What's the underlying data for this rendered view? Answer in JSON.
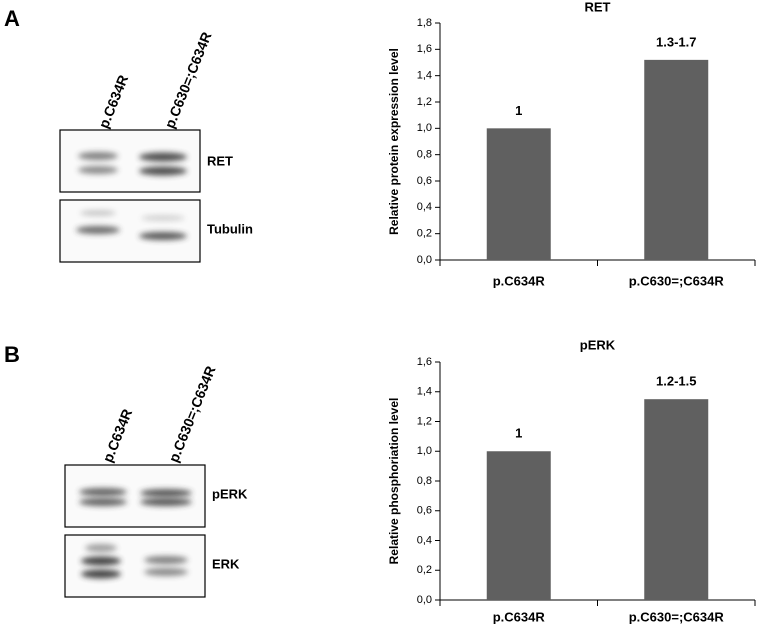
{
  "panels": [
    {
      "label": "A",
      "blot": {
        "lanes": [
          "p.C634R",
          "p.C630=;C634R"
        ],
        "rows": [
          "RET",
          "Tubulin"
        ]
      }
    },
    {
      "label": "B",
      "blot": {
        "lanes": [
          "p.C634R",
          "p.C630=;C634R"
        ],
        "rows": [
          "pERK",
          "ERK"
        ]
      }
    }
  ],
  "chart_data": [
    {
      "type": "bar",
      "title": "RET",
      "y_label": "Relative protein expression level",
      "categories": [
        "p.C634R",
        "p.C630=;C634R"
      ],
      "values": [
        1.0,
        1.52
      ],
      "value_labels": [
        "1",
        "1.3-1.7"
      ],
      "color": "#606060",
      "ylim": [
        0,
        1.8
      ],
      "yticks": [
        {
          "value": 0,
          "label": "0,0"
        },
        {
          "value": 0.2,
          "label": "0,2"
        },
        {
          "value": 0.4,
          "label": "0,4"
        },
        {
          "value": 0.6,
          "label": "0,6"
        },
        {
          "value": 0.8,
          "label": "0,8"
        },
        {
          "value": 1.0,
          "label": "1,0"
        },
        {
          "value": 1.2,
          "label": "1,2"
        },
        {
          "value": 1.4,
          "label": "1,4"
        },
        {
          "value": 1.6,
          "label": "1,6"
        },
        {
          "value": 1.8,
          "label": "1,8"
        }
      ]
    },
    {
      "type": "bar",
      "title": "pERK",
      "y_label": "Relative phosphoriation level",
      "categories": [
        "p.C634R",
        "p.C630=;C634R"
      ],
      "values": [
        1.0,
        1.35
      ],
      "value_labels": [
        "1",
        "1.2-1.5"
      ],
      "color": "#606060",
      "ylim": [
        0,
        1.6
      ],
      "yticks": [
        {
          "value": 0,
          "label": "0,0"
        },
        {
          "value": 0.2,
          "label": "0,2"
        },
        {
          "value": 0.4,
          "label": "0,4"
        },
        {
          "value": 0.6,
          "label": "0,6"
        },
        {
          "value": 0.8,
          "label": "0,8"
        },
        {
          "value": 1.0,
          "label": "1,0"
        },
        {
          "value": 1.2,
          "label": "1,2"
        },
        {
          "value": 1.4,
          "label": "1,4"
        },
        {
          "value": 1.6,
          "label": "1,6"
        }
      ]
    }
  ]
}
